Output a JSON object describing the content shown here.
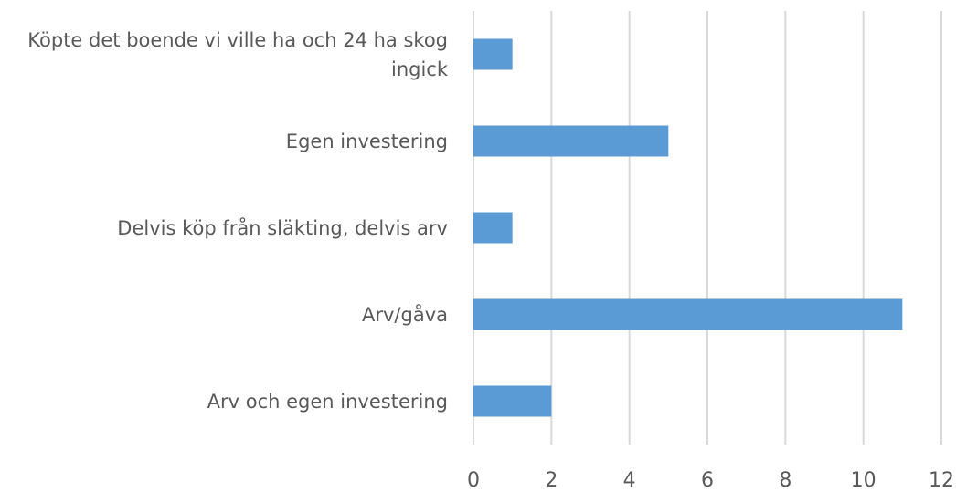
{
  "chart_data": {
    "type": "barh",
    "categories": [
      "Köpte det boende vi ville ha och 24 ha skog ingick",
      "Egen investering",
      "Delvis köp från släkting, delvis arv",
      "Arv/gåva",
      "Arv och egen investering"
    ],
    "values": [
      1,
      5,
      1,
      11,
      2
    ],
    "color": "#5b9bd5",
    "xlim": [
      0,
      12
    ],
    "xticks": [
      0,
      2,
      4,
      6,
      8,
      10,
      12
    ],
    "grid": true
  }
}
